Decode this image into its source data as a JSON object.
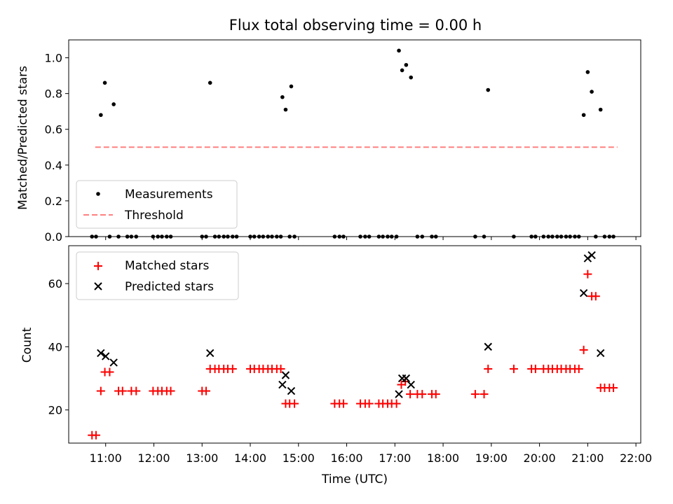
{
  "chart_data": [
    {
      "type": "scatter",
      "title": "Flux total observing time = 0.00 h",
      "xlabel": "",
      "ylabel": "Matched/Predicted stars",
      "ylim": [
        0,
        1.1
      ],
      "yticks": [
        0.0,
        0.2,
        0.4,
        0.6,
        0.8,
        1.0
      ],
      "ytick_labels": [
        "0.0",
        "0.2",
        "0.4",
        "0.6",
        "0.8",
        "1.0"
      ],
      "xlim": [
        "10:14",
        "22:06"
      ],
      "legend": {
        "placement": "lower-left",
        "entries": [
          "Measurements",
          "Threshold"
        ]
      },
      "colors": {
        "measurements": "#000000",
        "threshold": "#ff8080"
      },
      "series": [
        {
          "name": "Measurements",
          "points": [
            [
              "10:43",
              0.0
            ],
            [
              "10:48",
              0.0
            ],
            [
              "10:54",
              0.68
            ],
            [
              "10:59",
              0.86
            ],
            [
              "11:05",
              0.0
            ],
            [
              "11:10",
              0.74
            ],
            [
              "11:16",
              0.0
            ],
            [
              "11:27",
              0.0
            ],
            [
              "11:32",
              0.0
            ],
            [
              "11:38",
              0.0
            ],
            [
              "11:59",
              0.0
            ],
            [
              "12:05",
              0.0
            ],
            [
              "12:10",
              0.0
            ],
            [
              "12:16",
              0.0
            ],
            [
              "12:21",
              0.0
            ],
            [
              "13:00",
              0.0
            ],
            [
              "13:05",
              0.0
            ],
            [
              "13:10",
              0.86
            ],
            [
              "13:16",
              0.0
            ],
            [
              "13:21",
              0.0
            ],
            [
              "13:27",
              0.0
            ],
            [
              "13:32",
              0.0
            ],
            [
              "13:38",
              0.0
            ],
            [
              "13:43",
              0.0
            ],
            [
              "14:00",
              0.0
            ],
            [
              "14:05",
              0.0
            ],
            [
              "14:11",
              0.0
            ],
            [
              "14:16",
              0.0
            ],
            [
              "14:22",
              0.0
            ],
            [
              "14:27",
              0.0
            ],
            [
              "14:33",
              0.0
            ],
            [
              "14:38",
              0.0
            ],
            [
              "14:40",
              0.78
            ],
            [
              "14:44",
              0.71
            ],
            [
              "14:49",
              0.0
            ],
            [
              "14:51",
              0.84
            ],
            [
              "14:55",
              0.0
            ],
            [
              "15:45",
              0.0
            ],
            [
              "15:51",
              0.0
            ],
            [
              "15:56",
              0.0
            ],
            [
              "16:17",
              0.0
            ],
            [
              "16:23",
              0.0
            ],
            [
              "16:28",
              0.0
            ],
            [
              "16:40",
              0.0
            ],
            [
              "16:45",
              0.0
            ],
            [
              "16:51",
              0.0
            ],
            [
              "16:56",
              0.0
            ],
            [
              "17:02",
              0.0
            ],
            [
              "17:05",
              1.04
            ],
            [
              "17:09",
              0.93
            ],
            [
              "17:14",
              0.96
            ],
            [
              "17:20",
              0.89
            ],
            [
              "17:28",
              0.0
            ],
            [
              "17:34",
              0.0
            ],
            [
              "17:46",
              0.0
            ],
            [
              "17:51",
              0.0
            ],
            [
              "18:40",
              0.0
            ],
            [
              "18:51",
              0.0
            ],
            [
              "18:56",
              0.82
            ],
            [
              "19:28",
              0.0
            ],
            [
              "19:50",
              0.0
            ],
            [
              "19:55",
              0.0
            ],
            [
              "20:05",
              0.0
            ],
            [
              "20:11",
              0.0
            ],
            [
              "20:16",
              0.0
            ],
            [
              "20:22",
              0.0
            ],
            [
              "20:27",
              0.0
            ],
            [
              "20:33",
              0.0
            ],
            [
              "20:38",
              0.0
            ],
            [
              "20:44",
              0.0
            ],
            [
              "20:49",
              0.0
            ],
            [
              "20:55",
              0.68
            ],
            [
              "21:00",
              0.92
            ],
            [
              "21:05",
              0.81
            ],
            [
              "21:10",
              0.0
            ],
            [
              "21:16",
              0.71
            ],
            [
              "21:21",
              0.0
            ],
            [
              "21:27",
              0.0
            ],
            [
              "21:32",
              0.0
            ]
          ]
        },
        {
          "name": "Threshold",
          "style": "dashed-line",
          "points": [
            [
              "10:47",
              0.5
            ],
            [
              "21:37",
              0.5
            ]
          ]
        }
      ]
    },
    {
      "type": "scatter",
      "title": "",
      "xlabel": "Time (UTC)",
      "ylabel": "Count",
      "ylim": [
        9.5,
        72
      ],
      "yticks": [
        20,
        40,
        60
      ],
      "ytick_labels": [
        "20",
        "40",
        "60"
      ],
      "xlim": [
        "10:14",
        "22:06"
      ],
      "xticks": [
        "11:00",
        "12:00",
        "13:00",
        "14:00",
        "15:00",
        "16:00",
        "17:00",
        "18:00",
        "19:00",
        "20:00",
        "21:00",
        "22:00"
      ],
      "legend": {
        "placement": "upper-left",
        "entries": [
          "Matched stars",
          "Predicted stars"
        ]
      },
      "colors": {
        "matched": "#ff0000",
        "predicted": "#000000"
      },
      "series": [
        {
          "name": "Matched stars",
          "marker": "plus",
          "points": [
            [
              "10:43",
              12
            ],
            [
              "10:48",
              12
            ],
            [
              "10:54",
              26
            ],
            [
              "10:59",
              32
            ],
            [
              "11:05",
              32
            ],
            [
              "11:16",
              26
            ],
            [
              "11:21",
              26
            ],
            [
              "11:32",
              26
            ],
            [
              "11:38",
              26
            ],
            [
              "11:59",
              26
            ],
            [
              "12:05",
              26
            ],
            [
              "12:10",
              26
            ],
            [
              "12:16",
              26
            ],
            [
              "12:21",
              26
            ],
            [
              "13:00",
              26
            ],
            [
              "13:05",
              26
            ],
            [
              "13:10",
              33
            ],
            [
              "13:16",
              33
            ],
            [
              "13:21",
              33
            ],
            [
              "13:27",
              33
            ],
            [
              "13:32",
              33
            ],
            [
              "13:38",
              33
            ],
            [
              "14:00",
              33
            ],
            [
              "14:05",
              33
            ],
            [
              "14:11",
              33
            ],
            [
              "14:16",
              33
            ],
            [
              "14:22",
              33
            ],
            [
              "14:27",
              33
            ],
            [
              "14:33",
              33
            ],
            [
              "14:38",
              33
            ],
            [
              "14:44",
              22
            ],
            [
              "14:49",
              22
            ],
            [
              "14:55",
              22
            ],
            [
              "15:45",
              22
            ],
            [
              "15:51",
              22
            ],
            [
              "15:56",
              22
            ],
            [
              "16:17",
              22
            ],
            [
              "16:23",
              22
            ],
            [
              "16:28",
              22
            ],
            [
              "16:40",
              22
            ],
            [
              "16:45",
              22
            ],
            [
              "16:51",
              22
            ],
            [
              "16:56",
              22
            ],
            [
              "17:02",
              22
            ],
            [
              "17:08",
              28
            ],
            [
              "17:13",
              29
            ],
            [
              "17:19",
              25
            ],
            [
              "17:28",
              25
            ],
            [
              "17:34",
              25
            ],
            [
              "17:46",
              25
            ],
            [
              "17:51",
              25
            ],
            [
              "18:40",
              25
            ],
            [
              "18:51",
              25
            ],
            [
              "18:56",
              33
            ],
            [
              "19:28",
              33
            ],
            [
              "19:50",
              33
            ],
            [
              "19:55",
              33
            ],
            [
              "20:05",
              33
            ],
            [
              "20:11",
              33
            ],
            [
              "20:16",
              33
            ],
            [
              "20:22",
              33
            ],
            [
              "20:27",
              33
            ],
            [
              "20:33",
              33
            ],
            [
              "20:38",
              33
            ],
            [
              "20:44",
              33
            ],
            [
              "20:49",
              33
            ],
            [
              "20:55",
              39
            ],
            [
              "21:00",
              63
            ],
            [
              "21:05",
              56
            ],
            [
              "21:10",
              56
            ],
            [
              "21:16",
              27
            ],
            [
              "21:21",
              27
            ],
            [
              "21:27",
              27
            ],
            [
              "21:32",
              27
            ]
          ]
        },
        {
          "name": "Predicted stars",
          "marker": "x",
          "points": [
            [
              "10:54",
              38
            ],
            [
              "11:00",
              37
            ],
            [
              "11:10",
              35
            ],
            [
              "13:10",
              38
            ],
            [
              "14:40",
              28
            ],
            [
              "14:44",
              31
            ],
            [
              "14:51",
              26
            ],
            [
              "17:05",
              25
            ],
            [
              "17:09",
              30
            ],
            [
              "17:14",
              30
            ],
            [
              "17:20",
              28
            ],
            [
              "18:56",
              40
            ],
            [
              "20:55",
              57
            ],
            [
              "21:00",
              68
            ],
            [
              "21:05",
              69
            ],
            [
              "21:16",
              38
            ]
          ]
        }
      ]
    }
  ]
}
